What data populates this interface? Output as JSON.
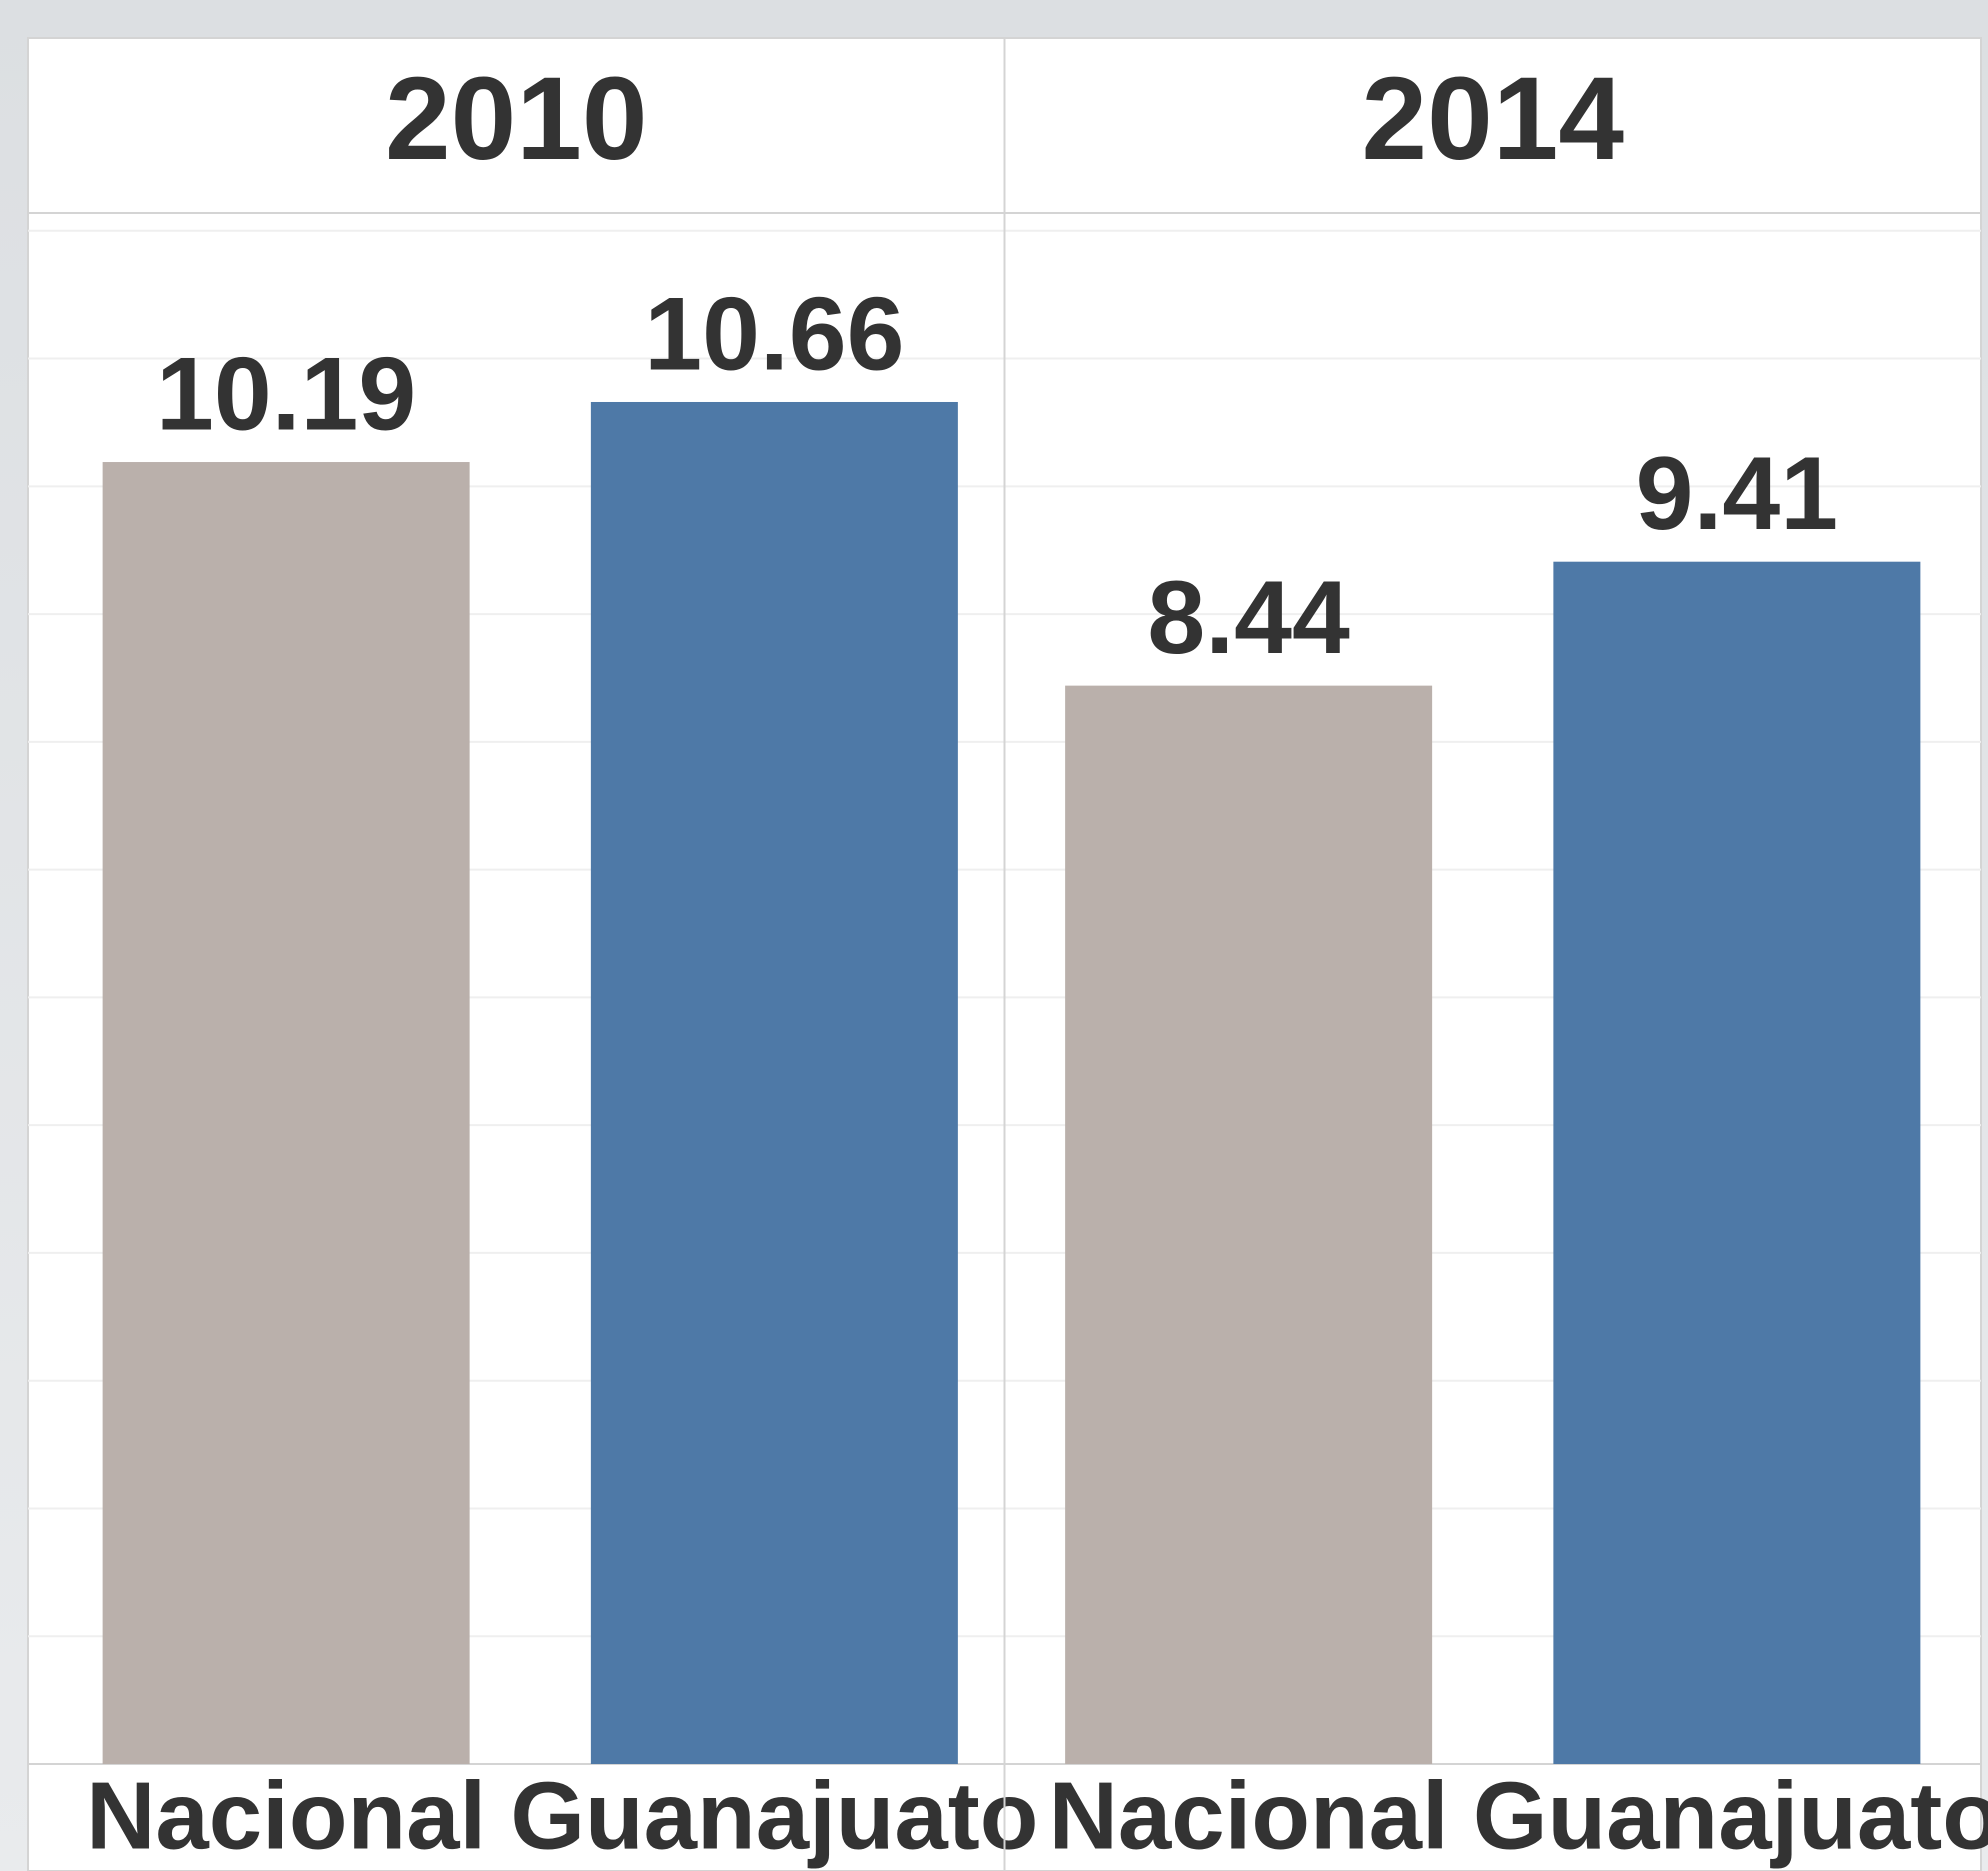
{
  "chart_data": [
    {
      "type": "bar",
      "title": "2010",
      "categories": [
        "Nacional",
        "Guanajuato"
      ],
      "values": [
        10.19,
        10.66
      ],
      "colors": [
        "#bab0ab",
        "#4e79a7"
      ],
      "ylim": [
        0,
        12.1
      ],
      "yticks": [
        0,
        1,
        2,
        3,
        4,
        5,
        6,
        7,
        8,
        9,
        10,
        11,
        12
      ],
      "grid": true
    },
    {
      "type": "bar",
      "title": "2014",
      "categories": [
        "Nacional",
        "Guanajuato"
      ],
      "values": [
        8.44,
        9.41
      ],
      "colors": [
        "#bab0ab",
        "#4e79a7"
      ],
      "ylim": [
        0,
        12.1
      ],
      "yticks": [
        0,
        1,
        2,
        3,
        4,
        5,
        6,
        7,
        8,
        9,
        10,
        11,
        12
      ],
      "grid": true
    }
  ]
}
